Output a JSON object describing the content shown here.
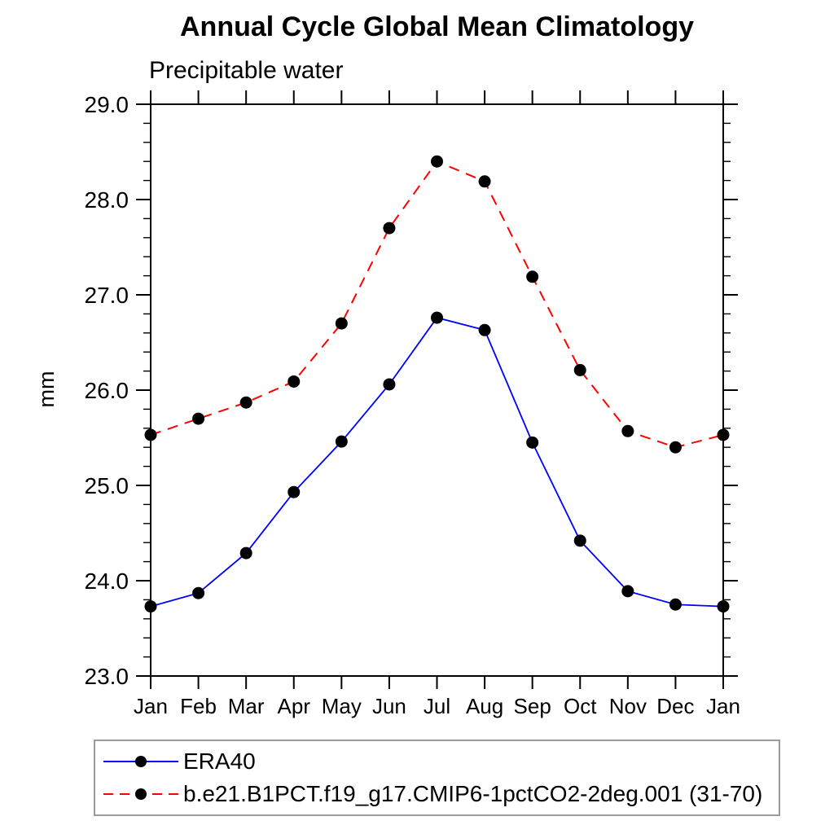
{
  "header": {
    "title": "Annual Cycle Global Mean Climatology",
    "subtitle": "Precipitable water"
  },
  "colors": {
    "era40_line": "#0000ff",
    "model_line": "#ff0000",
    "marker": "#000000",
    "axis": "#000000",
    "legend_border": "#9a9a9a",
    "background": "#ffffff"
  },
  "chart_data": {
    "type": "line",
    "title": "Annual Cycle Global Mean Climatology",
    "subtitle": "Precipitable water",
    "xlabel": "",
    "ylabel": "mm",
    "categories": [
      "Jan",
      "Feb",
      "Mar",
      "Apr",
      "May",
      "Jun",
      "Jul",
      "Aug",
      "Sep",
      "Oct",
      "Nov",
      "Dec",
      "Jan"
    ],
    "ylim": [
      23.0,
      29.0
    ],
    "ytick_major_interval": 1.0,
    "ytick_minor_interval": 0.2,
    "ytick_labels": [
      "23.0",
      "24.0",
      "25.0",
      "26.0",
      "27.0",
      "28.0",
      "29.0"
    ],
    "grid": false,
    "legend_position": "bottom-left",
    "marker": "filled-circle",
    "series": [
      {
        "name": "ERA40",
        "color": "#0000ff",
        "line_style": "solid",
        "values": [
          23.73,
          23.87,
          24.29,
          24.93,
          25.46,
          26.06,
          26.76,
          26.63,
          25.45,
          24.42,
          23.89,
          23.75,
          23.73
        ]
      },
      {
        "name": "b.e21.B1PCT.f19_g17.CMIP6-1pctCO2-2deg.001 (31-70)",
        "color": "#ff0000",
        "line_style": "dashed",
        "values": [
          25.53,
          25.7,
          25.87,
          26.09,
          26.7,
          27.7,
          28.4,
          28.19,
          27.19,
          26.21,
          25.57,
          25.4,
          25.53
        ]
      }
    ]
  }
}
